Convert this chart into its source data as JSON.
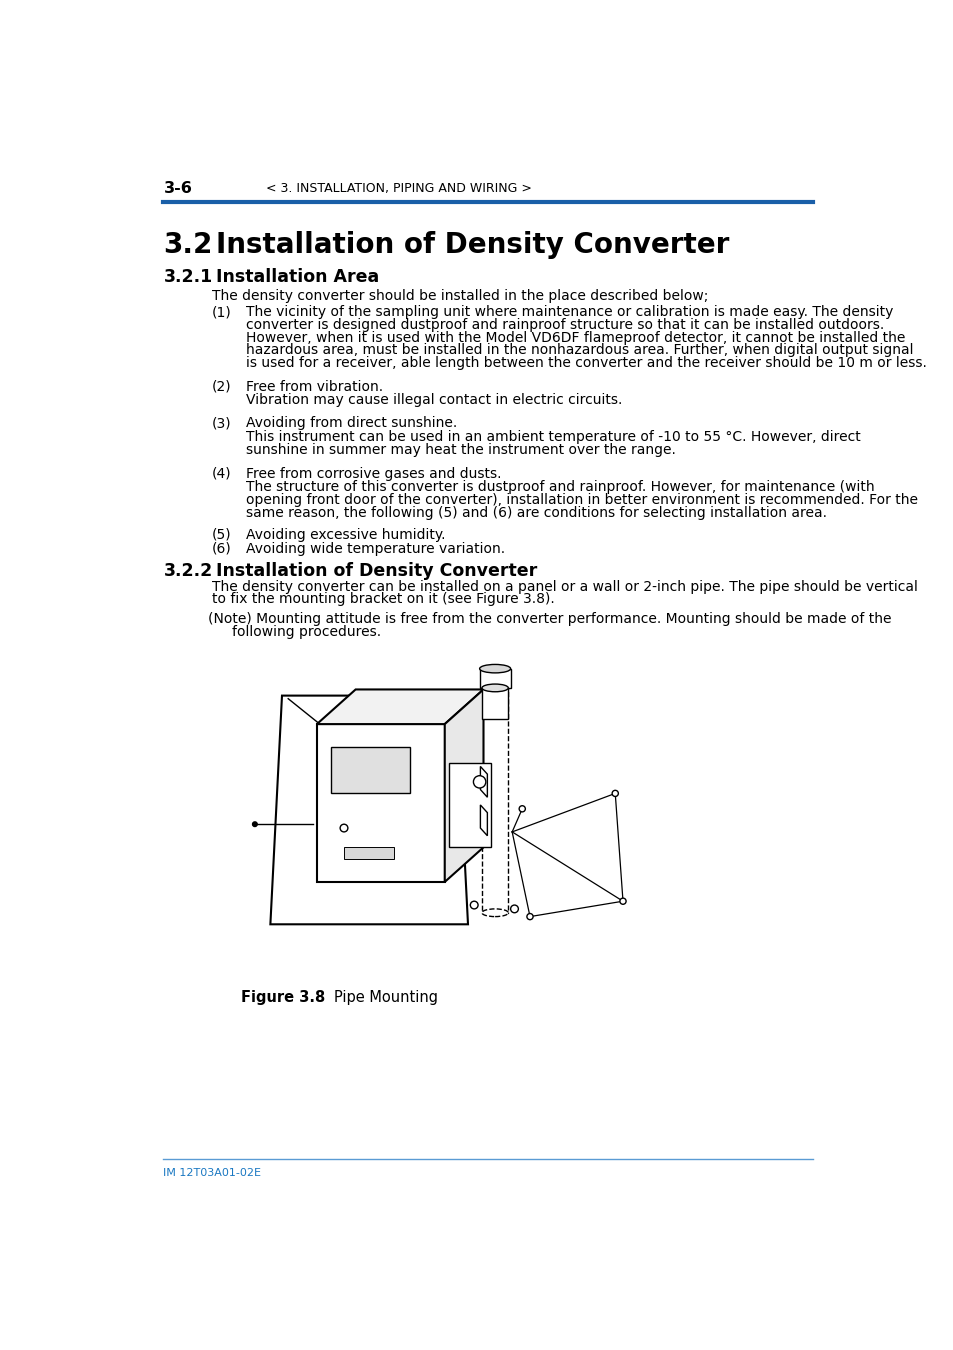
{
  "page_header_left": "3-6",
  "page_header_center": "< 3. INSTALLATION, PIPING AND WIRING >",
  "section_num": "3.2",
  "section_title": "Installation of Density Converter",
  "subsection1_num": "3.2.1",
  "subsection1_title": "Installation Area",
  "subsection2_num": "3.2.2",
  "subsection2_title": "Installation of Density Converter",
  "footer_text": "IM 12T03A01-02E",
  "header_line_color": "#1a5fa8",
  "footer_line_color": "#5a9bd4",
  "footer_text_color": "#1a78c2",
  "text_color": "#000000",
  "background_color": "#ffffff",
  "body_text_1": "The density converter should be installed in the place described below;",
  "item1_num": "(1)",
  "item1_text": "The vicinity of the sampling unit where maintenance or calibration is made easy. The density\nconverter is designed dustproof and rainproof structure so that it can be installed outdoors.\nHowever, when it is used with the Model VD6DF flameproof detector, it cannot be installed the\nhazardous area, must be installed in the nonhazardous area. Further, when digital output signal\nis used for a receiver, able length between the converter and the receiver should be 10 m or less.",
  "item2_num": "(2)",
  "item2_text": "Free from vibration.",
  "item2_sub": "Vibration may cause illegal contact in electric circuits.",
  "item3_num": "(3)",
  "item3_text": "Avoiding from direct sunshine.",
  "item3_sub": "This instrument can be used in an ambient temperature of -10 to 55 °C. However, direct\nsunshine in summer may heat the instrument over the range.",
  "item4_num": "(4)",
  "item4_text": "Free from corrosive gases and dusts.",
  "item4_sub": "The structure of this converter is dustproof and rainproof. However, for maintenance (with\nopening front door of the converter), installation in better environment is recommended. For the\nsame reason, the following (5) and (6) are conditions for selecting installation area.",
  "item5_num": "(5)",
  "item5_text": "Avoiding excessive humidity.",
  "item6_num": "(6)",
  "item6_text": "Avoiding wide temperature variation.",
  "body_text_2a": "The density converter can be installed on a panel or a wall or 2-inch pipe. The pipe should be vertical",
  "body_text_2b": "to fix the mounting bracket on it (see Figure 3.8).",
  "note_text_a": "(Note) Mounting attitude is free from the converter performance. Mounting should be made of the",
  "note_text_b": "       following procedures.",
  "figure_caption_label": "Figure 3.8",
  "figure_caption_text": "Pipe Mounting"
}
